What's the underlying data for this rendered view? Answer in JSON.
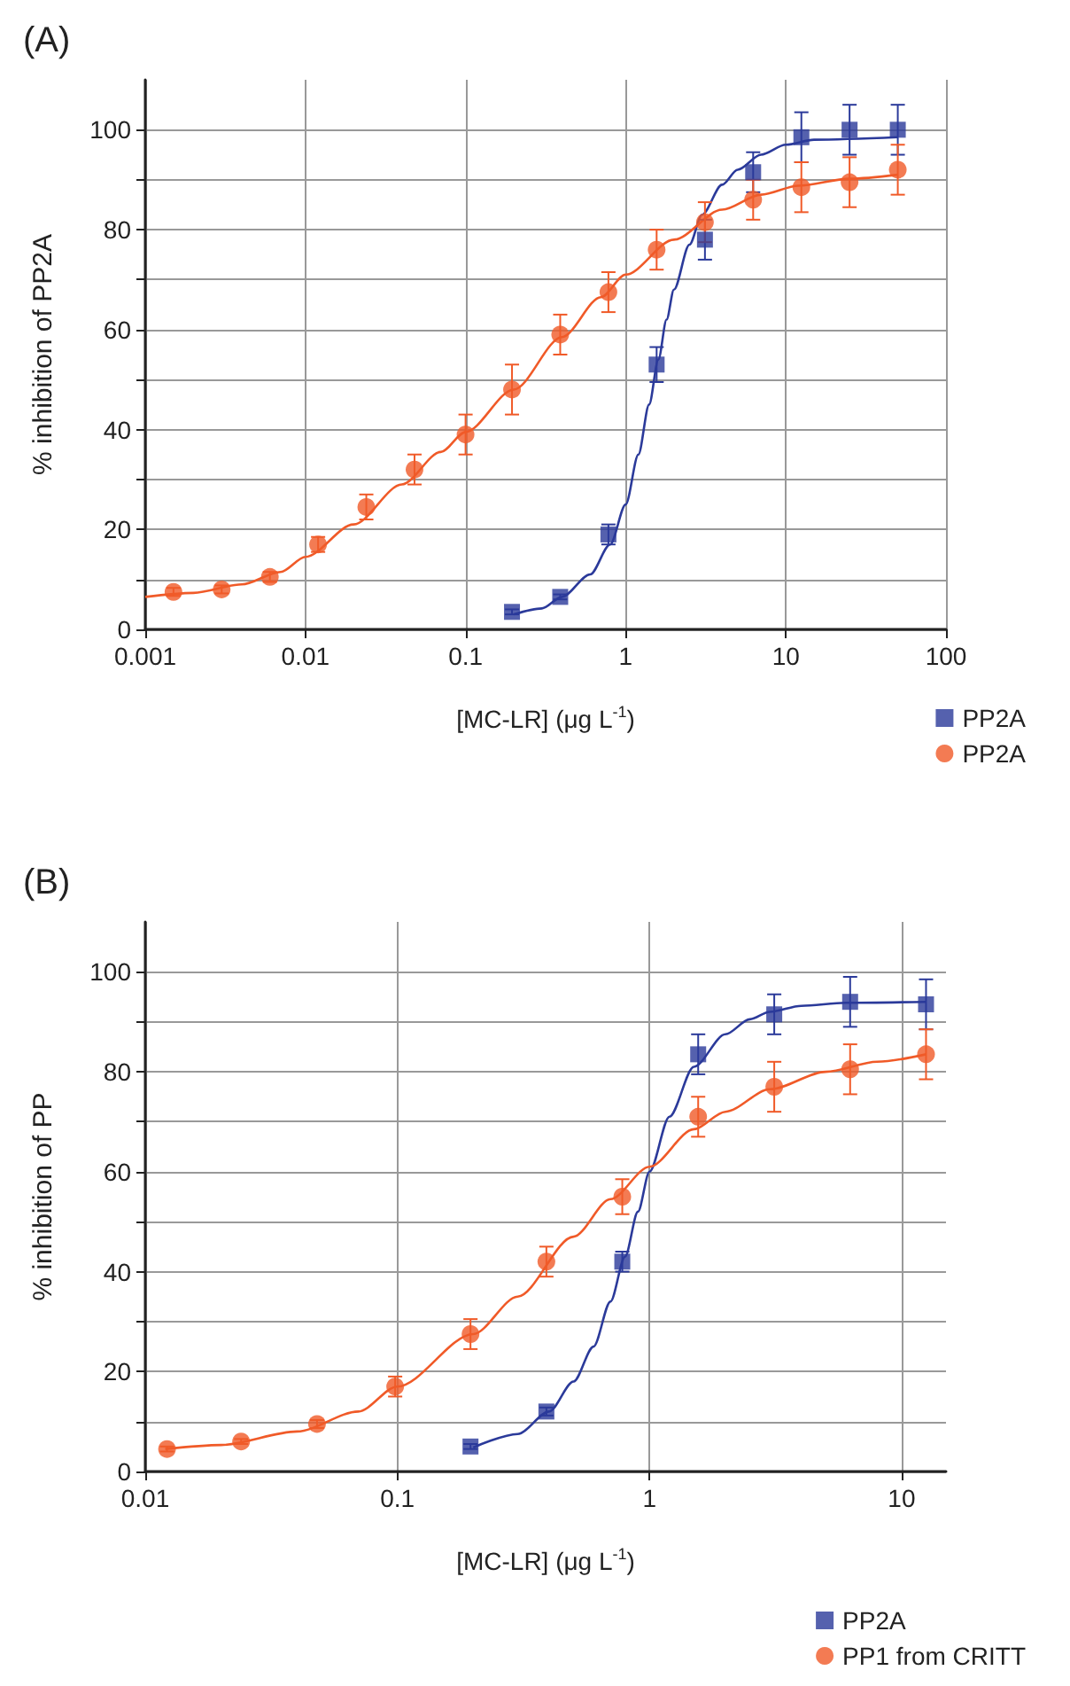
{
  "chart_data": [
    {
      "type": "scatter",
      "title": "(A)",
      "xlabel": "[MC-LR] (μg L$^{-1}$)",
      "ylabel": "% inhibition of PP2A",
      "log": "x",
      "grid": true,
      "legend": "bottom right",
      "xlim": [
        0.001,
        100
      ],
      "xticks": [
        0.001,
        0.01,
        0.1,
        1,
        10,
        100
      ],
      "ylim": [
        0,
        110
      ],
      "yticks": [
        0,
        {
          "value": 10,
          "label": null
        },
        20,
        {
          "value": 30,
          "label": null
        },
        40,
        {
          "value": 50,
          "label": null
        },
        60,
        {
          "value": 70,
          "label": null
        },
        80,
        {
          "value": 90,
          "label": null
        },
        100
      ],
      "series": [
        {
          "name": "PP2A",
          "marker": "square",
          "color": "#2b3a9a",
          "x": [
            0.195,
            0.39,
            0.78,
            1.56,
            3.125,
            6.25,
            12.5,
            25,
            50
          ],
          "values": [
            3.5,
            6.5,
            19,
            53,
            78,
            91.5,
            98.5,
            100,
            100
          ],
          "errors": [
            0.5,
            0.5,
            2,
            3.5,
            4,
            4,
            5,
            5,
            5
          ]
        },
        {
          "name": "PP2A",
          "marker": "circle",
          "color": "#f05a28",
          "x": [
            0.0015,
            0.003,
            0.006,
            0.012,
            0.024,
            0.048,
            0.1,
            0.195,
            0.39,
            0.78,
            1.56,
            3.125,
            6.25,
            12.5,
            25,
            50
          ],
          "values": [
            7.5,
            8,
            10.5,
            17,
            24.5,
            32,
            39,
            48,
            59,
            67.5,
            76,
            81.5,
            86,
            88.5,
            89.5,
            92
          ],
          "errors": [
            0.8,
            0.8,
            1,
            1.5,
            2.5,
            3,
            4,
            5,
            4,
            4,
            4,
            4,
            4,
            5,
            5,
            5
          ]
        },
        {
          "type": "line",
          "marker": "none",
          "color": "#2b3a9a",
          "x": [
            0.2,
            0.3,
            0.4,
            0.6,
            0.8,
            1,
            1.2,
            1.4,
            1.6,
            1.8,
            2,
            2.5,
            3,
            4,
            5,
            7,
            10,
            15,
            50
          ],
          "values": [
            3,
            4.2,
            6.5,
            11,
            17,
            25,
            35,
            45,
            54,
            62,
            68,
            77,
            83,
            89,
            92,
            95,
            97,
            98,
            98.5
          ]
        },
        {
          "type": "line",
          "marker": "none",
          "color": "#f05a28",
          "x": [
            0.001,
            0.002,
            0.004,
            0.007,
            0.01,
            0.02,
            0.04,
            0.07,
            0.1,
            0.2,
            0.4,
            0.7,
            1,
            2,
            4,
            7,
            12,
            25,
            50
          ],
          "values": [
            6.5,
            7.3,
            9,
            11.5,
            14.5,
            21,
            29,
            35.5,
            39.5,
            48,
            58.5,
            66.5,
            71,
            78,
            84,
            87,
            88.8,
            90.2,
            91
          ]
        }
      ]
    },
    {
      "type": "scatter",
      "title": "(B)",
      "xlabel": "[MC-LR] (μg L$^{-1}$)",
      "ylabel": "% inhibition of PP",
      "log": "x",
      "grid": true,
      "legend": "bottom right",
      "xlim": [
        0.01,
        15
      ],
      "xticks": [
        0.01,
        0.1,
        1,
        10
      ],
      "ylim": [
        0,
        110
      ],
      "yticks": [
        0,
        {
          "value": 10,
          "label": null
        },
        20,
        {
          "value": 30,
          "label": null
        },
        40,
        {
          "value": 50,
          "label": null
        },
        60,
        {
          "value": 70,
          "label": null
        },
        80,
        {
          "value": 90,
          "label": null
        },
        100
      ],
      "series": [
        {
          "name": "PP2A",
          "marker": "square",
          "color": "#2b3a9a",
          "x": [
            0.195,
            0.39,
            0.78,
            1.56,
            3.125,
            6.25,
            12.5
          ],
          "values": [
            5,
            12,
            42,
            83.5,
            91.5,
            94,
            93.5
          ],
          "errors": [
            0.5,
            0.8,
            2,
            4,
            4,
            5,
            5
          ]
        },
        {
          "name": "PP1 from CRITT",
          "marker": "circle",
          "color": "#f05a28",
          "x": [
            0.0122,
            0.024,
            0.048,
            0.098,
            0.195,
            0.39,
            0.78,
            1.56,
            3.125,
            6.25,
            12.5
          ],
          "values": [
            4.5,
            6,
            9.5,
            17,
            27.5,
            42,
            55,
            71,
            77,
            80.5,
            83.5
          ],
          "errors": [
            0.5,
            0.5,
            0.8,
            2,
            3,
            3,
            3.5,
            4,
            5,
            5,
            5
          ]
        },
        {
          "type": "line",
          "marker": "none",
          "color": "#2b3a9a",
          "x": [
            0.2,
            0.3,
            0.4,
            0.5,
            0.6,
            0.7,
            0.8,
            0.9,
            1,
            1.2,
            1.5,
            2,
            2.5,
            3,
            4,
            6,
            12.5
          ],
          "values": [
            4.8,
            7.5,
            12,
            18,
            25,
            34,
            43,
            52,
            60,
            71,
            81,
            87.5,
            90.5,
            92,
            93.2,
            93.8,
            94
          ]
        },
        {
          "type": "line",
          "marker": "none",
          "color": "#f05a28",
          "x": [
            0.012,
            0.02,
            0.04,
            0.07,
            0.1,
            0.2,
            0.3,
            0.5,
            0.7,
            1,
            1.5,
            2,
            3,
            5,
            8,
            12.5
          ],
          "values": [
            4.5,
            5.3,
            8,
            12,
            17,
            27.5,
            35,
            47,
            54.5,
            61,
            68.5,
            72,
            76.5,
            80,
            82,
            83.5
          ]
        }
      ]
    }
  ]
}
